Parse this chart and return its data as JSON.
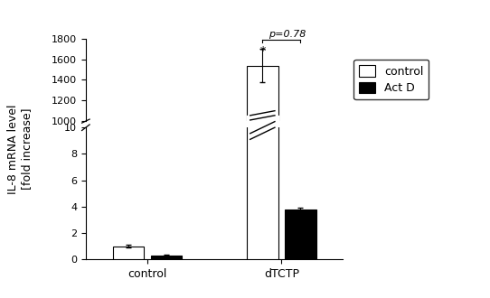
{
  "groups": [
    "control",
    "dTCTP"
  ],
  "bar_colors": [
    "white",
    "black"
  ],
  "bar_edgecolors": [
    "black",
    "black"
  ],
  "values": [
    [
      1.0,
      0.3
    ],
    [
      1540.0,
      3.8
    ]
  ],
  "errors": [
    [
      0.12,
      0.04
    ],
    [
      160.0,
      0.12
    ]
  ],
  "ylabel": "IL-8 mRNA level\n[fold increase]",
  "xlabel_groups": [
    "control",
    "dTCTP"
  ],
  "p_value_text": "p=0.78",
  "asterisk": "*",
  "lower_ylim": [
    0,
    10
  ],
  "upper_ylim": [
    1000,
    1800
  ],
  "lower_yticks": [
    0,
    2,
    4,
    6,
    8,
    10
  ],
  "upper_yticks": [
    1000,
    1200,
    1400,
    1600,
    1800
  ],
  "background_color": "white",
  "bar_width": 0.28,
  "group_centers": [
    1.0,
    2.2
  ],
  "bar_gap": 0.06,
  "legend_labels": [
    "control",
    "Act D"
  ],
  "axis_fontsize": 9,
  "tick_fontsize": 8,
  "legend_fontsize": 9
}
